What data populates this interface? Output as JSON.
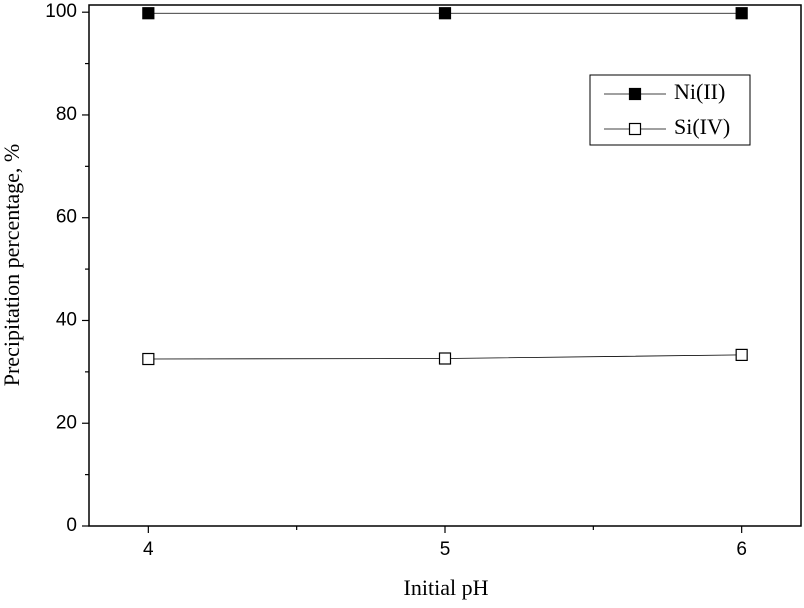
{
  "chart_data": {
    "type": "line",
    "x_label": "Initial pH",
    "y_label": "Precipitation percentage, %",
    "x": [
      4,
      5,
      6
    ],
    "series": [
      {
        "name": "Ni(II)",
        "color": "#000000",
        "marker": "filled-square",
        "values": [
          99.8,
          99.8,
          99.8
        ]
      },
      {
        "name": "Si(IV)",
        "color": "#000000",
        "marker": "open-square",
        "values": [
          32.5,
          32.6,
          33.3
        ]
      }
    ],
    "xlim": [
      3.8,
      6.2
    ],
    "xticks": [
      4,
      5,
      6
    ],
    "ylim": [
      0,
      101.4
    ],
    "yticks": [
      0,
      20,
      40,
      60,
      80,
      100
    ],
    "grid": false,
    "legend": "upper right"
  }
}
